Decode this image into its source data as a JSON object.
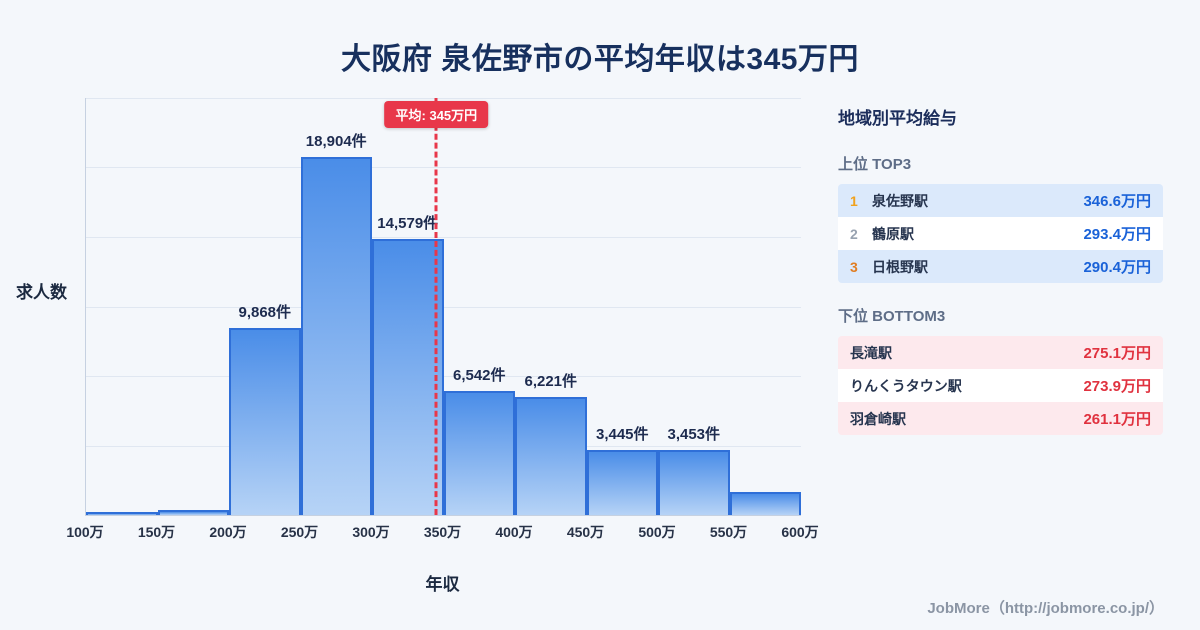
{
  "title": "大阪府 泉佐野市の平均年収は345万円",
  "chart_data": {
    "type": "bar",
    "title": "大阪府 泉佐野市の平均年収は345万円",
    "ylabel": "求人数",
    "xlabel": "年収",
    "x_tick_labels": [
      "100万",
      "150万",
      "200万",
      "250万",
      "300万",
      "350万",
      "400万",
      "450万",
      "500万",
      "550万",
      "600万"
    ],
    "bins": [
      [
        100,
        150
      ],
      [
        150,
        200
      ],
      [
        200,
        250
      ],
      [
        250,
        300
      ],
      [
        300,
        350
      ],
      [
        350,
        400
      ],
      [
        400,
        450
      ],
      [
        450,
        500
      ],
      [
        500,
        550
      ],
      [
        550,
        600
      ]
    ],
    "values": [
      150,
      280,
      9868,
      18904,
      14579,
      6542,
      6221,
      3445,
      3453,
      1200
    ],
    "labels": [
      "",
      "",
      "9,868件",
      "18,904件",
      "14,579件",
      "6,542件",
      "6,221件",
      "3,445件",
      "3,453件",
      ""
    ],
    "x_range": [
      100,
      600
    ],
    "ylim": [
      0,
      22000
    ],
    "grid": true,
    "legend": "none",
    "average": {
      "value": 345,
      "label": "平均: 345万円"
    }
  },
  "sidebar": {
    "title": "地域別平均給与",
    "top_label": "上位 TOP3",
    "bottom_label": "下位 BOTTOM3",
    "top3": [
      {
        "rank": "1",
        "station": "泉佐野駅",
        "value": "346.6万円"
      },
      {
        "rank": "2",
        "station": "鶴原駅",
        "value": "293.4万円"
      },
      {
        "rank": "3",
        "station": "日根野駅",
        "value": "290.4万円"
      }
    ],
    "bottom3": [
      {
        "station": "長滝駅",
        "value": "275.1万円"
      },
      {
        "station": "りんくうタウン駅",
        "value": "273.9万円"
      },
      {
        "station": "羽倉崎駅",
        "value": "261.1万円"
      }
    ]
  },
  "footer": {
    "credit": "JobMore（http://jobmore.co.jp/）"
  },
  "colors": {
    "background": "#f4f7fb",
    "title_text": "#17305e",
    "bar_gradient_top": "#4a8de8",
    "bar_gradient_bottom": "#b6d3f6",
    "bar_border": "#2f6fd8",
    "average_line": "#e8374a",
    "top_row_tint": "#dbe9fb",
    "bottom_row_tint": "#fde9ed",
    "top_value_text": "#1a62d8",
    "bottom_value_text": "#e0323f",
    "rank1": "#f0a11c",
    "rank2": "#98a2b0",
    "rank3": "#e07d22"
  }
}
